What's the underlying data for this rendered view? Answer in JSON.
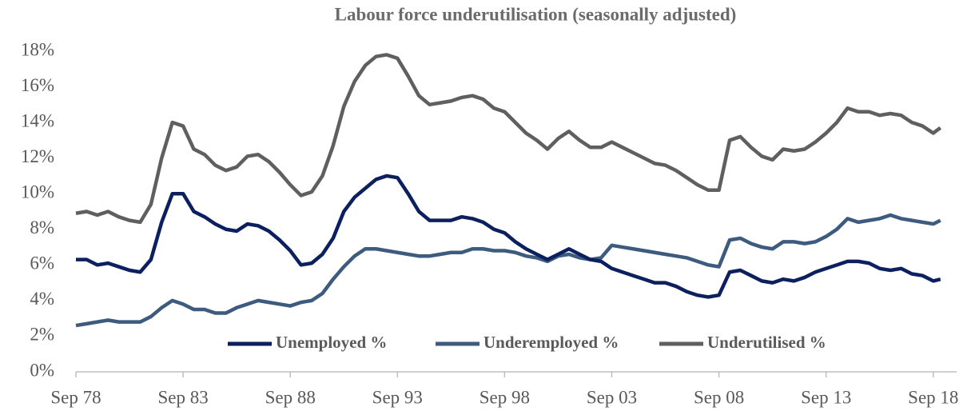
{
  "chart_data": {
    "type": "line",
    "title": "Labour force underutilisation (seasonally adjusted)",
    "x": [
      "Sep 78",
      "Mar 79",
      "Sep 79",
      "Mar 80",
      "Sep 80",
      "Mar 81",
      "Sep 81",
      "Mar 82",
      "Sep 82",
      "Mar 83",
      "Sep 83",
      "Mar 84",
      "Sep 84",
      "Mar 85",
      "Sep 85",
      "Mar 86",
      "Sep 86",
      "Mar 87",
      "Sep 87",
      "Mar 88",
      "Sep 88",
      "Mar 89",
      "Sep 89",
      "Mar 90",
      "Sep 90",
      "Mar 91",
      "Sep 91",
      "Mar 92",
      "Sep 92",
      "Mar 93",
      "Sep 93",
      "Mar 94",
      "Sep 94",
      "Mar 95",
      "Sep 95",
      "Mar 96",
      "Sep 96",
      "Mar 97",
      "Sep 97",
      "Mar 98",
      "Sep 98",
      "Mar 99",
      "Sep 99",
      "Mar 00",
      "Sep 00",
      "Mar 01",
      "Sep 01",
      "Mar 02",
      "Sep 02",
      "Mar 03",
      "Sep 03",
      "Mar 04",
      "Sep 04",
      "Mar 05",
      "Sep 05",
      "Mar 06",
      "Sep 06",
      "Mar 07",
      "Sep 07",
      "Mar 08",
      "Sep 08",
      "Mar 09",
      "Sep 09",
      "Mar 10",
      "Sep 10",
      "Mar 11",
      "Sep 11",
      "Mar 12",
      "Sep 12",
      "Mar 13",
      "Sep 13",
      "Mar 14",
      "Sep 14",
      "Mar 15",
      "Sep 15",
      "Mar 16",
      "Sep 16",
      "Mar 17",
      "Sep 17",
      "Mar 18",
      "Sep 18",
      "Jan 19"
    ],
    "xticks": [
      "Sep 78",
      "Sep 83",
      "Sep 88",
      "Sep 93",
      "Sep 98",
      "Sep 03",
      "Sep 08",
      "Sep 13",
      "Sep 18"
    ],
    "series": [
      {
        "name": "Unemployed %",
        "color": "#0c1f5e",
        "values": [
          6.3,
          6.3,
          6.0,
          6.1,
          5.9,
          5.7,
          5.6,
          6.3,
          8.4,
          10.0,
          10.0,
          9.0,
          8.7,
          8.3,
          8.0,
          7.9,
          8.3,
          8.2,
          7.9,
          7.4,
          6.8,
          6.0,
          6.1,
          6.6,
          7.5,
          9.0,
          9.8,
          10.3,
          10.8,
          11.0,
          10.9,
          10.0,
          9.0,
          8.5,
          8.5,
          8.5,
          8.7,
          8.6,
          8.4,
          8.0,
          7.8,
          7.3,
          6.9,
          6.6,
          6.3,
          6.6,
          6.9,
          6.6,
          6.3,
          6.2,
          5.8,
          5.6,
          5.4,
          5.2,
          5.0,
          5.0,
          4.8,
          4.5,
          4.3,
          4.2,
          4.3,
          5.6,
          5.7,
          5.4,
          5.1,
          5.0,
          5.2,
          5.1,
          5.3,
          5.6,
          5.8,
          6.0,
          6.2,
          6.2,
          6.1,
          5.8,
          5.7,
          5.8,
          5.5,
          5.4,
          5.1,
          5.2
        ]
      },
      {
        "name": "Underemployed %",
        "color": "#3d5a7f",
        "values": [
          2.6,
          2.7,
          2.8,
          2.9,
          2.8,
          2.8,
          2.8,
          3.1,
          3.6,
          4.0,
          3.8,
          3.5,
          3.5,
          3.3,
          3.3,
          3.6,
          3.8,
          4.0,
          3.9,
          3.8,
          3.7,
          3.9,
          4.0,
          4.4,
          5.2,
          5.9,
          6.5,
          6.9,
          6.9,
          6.8,
          6.7,
          6.6,
          6.5,
          6.5,
          6.6,
          6.7,
          6.7,
          6.9,
          6.9,
          6.8,
          6.8,
          6.7,
          6.5,
          6.4,
          6.2,
          6.5,
          6.6,
          6.4,
          6.3,
          6.4,
          7.1,
          7.0,
          6.9,
          6.8,
          6.7,
          6.6,
          6.5,
          6.4,
          6.2,
          6.0,
          5.9,
          7.4,
          7.5,
          7.2,
          7.0,
          6.9,
          7.3,
          7.3,
          7.2,
          7.3,
          7.6,
          8.0,
          8.6,
          8.4,
          8.5,
          8.6,
          8.8,
          8.6,
          8.5,
          8.4,
          8.3,
          8.5
        ]
      },
      {
        "name": "Underutilised %",
        "color": "#5f5f5f",
        "values": [
          8.9,
          9.0,
          8.8,
          9.0,
          8.7,
          8.5,
          8.4,
          9.4,
          12.0,
          14.0,
          13.8,
          12.5,
          12.2,
          11.6,
          11.3,
          11.5,
          12.1,
          12.2,
          11.8,
          11.2,
          10.5,
          9.9,
          10.1,
          11.0,
          12.7,
          14.9,
          16.3,
          17.2,
          17.7,
          17.8,
          17.6,
          16.6,
          15.5,
          15.0,
          15.1,
          15.2,
          15.4,
          15.5,
          15.3,
          14.8,
          14.6,
          14.0,
          13.4,
          13.0,
          12.5,
          13.1,
          13.5,
          13.0,
          12.6,
          12.6,
          12.9,
          12.6,
          12.3,
          12.0,
          11.7,
          11.6,
          11.3,
          10.9,
          10.5,
          10.2,
          10.2,
          13.0,
          13.2,
          12.6,
          12.1,
          11.9,
          12.5,
          12.4,
          12.5,
          12.9,
          13.4,
          14.0,
          14.8,
          14.6,
          14.6,
          14.4,
          14.5,
          14.4,
          14.0,
          13.8,
          13.4,
          13.7
        ]
      }
    ],
    "ylim": [
      0,
      18
    ],
    "yticks": [
      {
        "value": 0,
        "label": "0%"
      },
      {
        "value": 2,
        "label": "2%"
      },
      {
        "value": 4,
        "label": "4%"
      },
      {
        "value": 6,
        "label": "6%"
      },
      {
        "value": 8,
        "label": "8%"
      },
      {
        "value": 10,
        "label": "10%"
      },
      {
        "value": 12,
        "label": "12%"
      },
      {
        "value": 14,
        "label": "14%"
      },
      {
        "value": 16,
        "label": "16%"
      },
      {
        "value": 18,
        "label": "18%"
      }
    ],
    "grid": false,
    "legend": "bottom"
  }
}
